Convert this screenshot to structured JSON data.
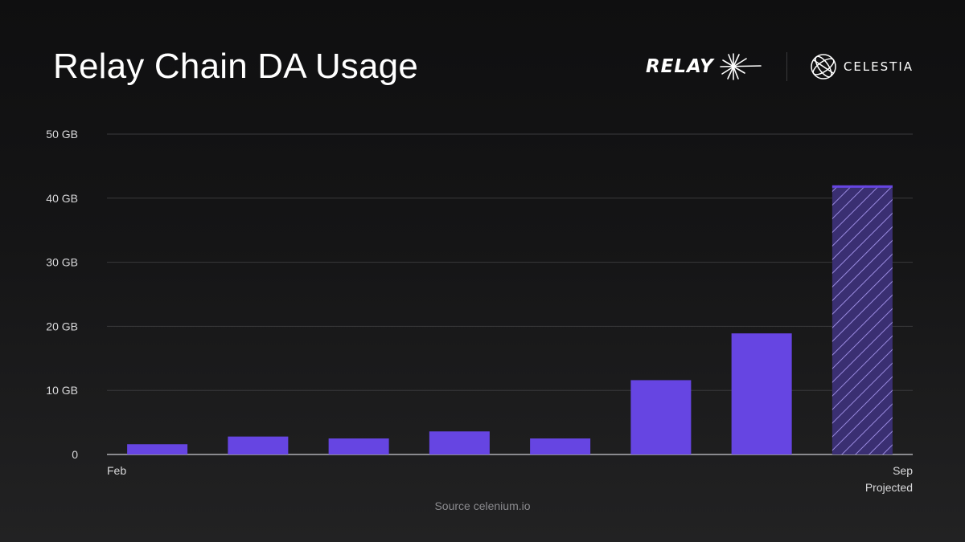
{
  "title": "Relay Chain DA Usage",
  "brands": {
    "relay": "RELAY",
    "celestia": "CELESTIA"
  },
  "source": "Source celenium.io",
  "colors": {
    "bar": "#6645e2",
    "projected_stripe": "#a898e6",
    "grid": "#3a3a3c",
    "axis": "#8a8a8e",
    "tick_text": "#d8d8da"
  },
  "chart_data": {
    "type": "bar",
    "categories": [
      "Feb",
      "",
      "",
      "",
      "",
      "",
      "",
      "Sep"
    ],
    "category_sublabels": [
      "",
      "",
      "",
      "",
      "",
      "",
      "",
      "Projected"
    ],
    "values": [
      1.6,
      2.8,
      2.5,
      3.6,
      2.5,
      11.6,
      18.9,
      42
    ],
    "projected": [
      false,
      false,
      false,
      false,
      false,
      false,
      false,
      true
    ],
    "yticks": [
      "0",
      "10 GB",
      "20 GB",
      "30 GB",
      "40 GB",
      "50 GB"
    ],
    "ylim": [
      0,
      50
    ],
    "grid": true,
    "title": "Relay Chain DA Usage"
  }
}
